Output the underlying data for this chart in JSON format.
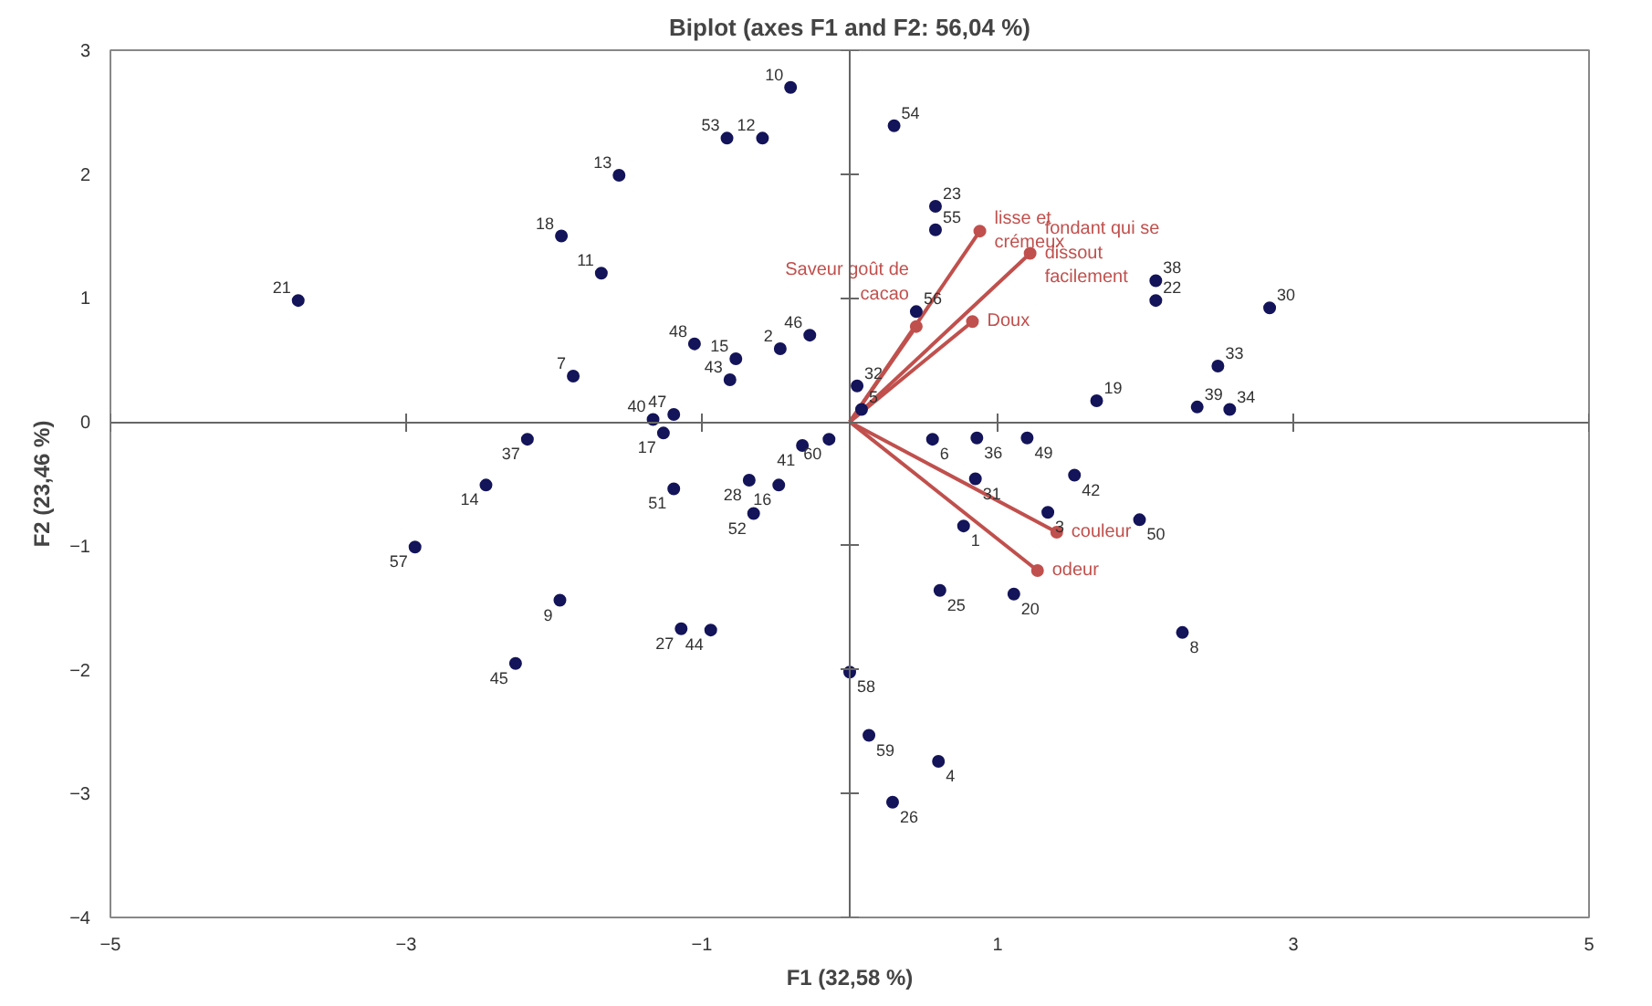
{
  "chart_data": {
    "type": "scatter",
    "title": "Biplot (axes F1 and F2: 56,04 %)",
    "xlabel": "F1 (32,58 %)",
    "ylabel": "F2 (23,46 %)",
    "xlim": [
      -5,
      5
    ],
    "ylim": [
      -4,
      3
    ],
    "xticks": [
      -5,
      -3,
      -1,
      1,
      3,
      5
    ],
    "yticks": [
      -4,
      -3,
      -2,
      -1,
      0,
      1,
      2,
      3
    ],
    "marker": "circle",
    "series": [
      {
        "color": "#14145a",
        "x": [
          -0.4,
          -0.83,
          -0.59,
          -1.56,
          -1.95,
          -1.68,
          -3.73,
          -1.05,
          -0.77,
          -0.81,
          -0.47,
          -0.27,
          -1.87,
          -1.33,
          -1.19,
          -1.26,
          -2.18,
          -2.46,
          -2.94,
          -1.96,
          -2.26,
          -1.14,
          -0.94,
          -1.19,
          -0.68,
          -0.48,
          -0.65,
          -0.32,
          -0.14,
          0.56,
          0.86,
          1.2,
          0.85,
          1.52,
          1.34,
          1.96,
          0.77,
          0.61,
          1.11,
          2.25,
          0.0,
          0.13,
          0.6,
          0.29,
          0.3,
          0.58,
          0.58,
          0.45,
          0.05,
          0.08,
          1.67,
          2.07,
          2.07,
          2.84,
          2.49,
          2.35,
          2.57
        ],
        "values": [
          2.7,
          2.29,
          2.29,
          1.99,
          1.5,
          1.2,
          0.98,
          0.63,
          0.51,
          0.34,
          0.59,
          0.7,
          0.37,
          0.02,
          0.06,
          -0.09,
          -0.14,
          -0.51,
          -1.01,
          -1.44,
          -1.95,
          -1.67,
          -1.68,
          -0.54,
          -0.47,
          -0.51,
          -0.74,
          -0.19,
          -0.14,
          -0.14,
          -0.13,
          -0.13,
          -0.46,
          -0.43,
          -0.73,
          -0.79,
          -0.84,
          -1.36,
          -1.39,
          -1.7,
          -2.02,
          -2.53,
          -2.74,
          -3.07,
          2.39,
          1.74,
          1.55,
          0.89,
          0.29,
          0.1,
          0.17,
          1.14,
          0.98,
          0.92,
          0.45,
          0.12,
          0.1
        ]
      },
      {
        "type": "line",
        "name": "lisse et crémeux",
        "color": "#c0504d",
        "x": [
          0,
          0.88
        ],
        "values": [
          0,
          1.54
        ]
      },
      {
        "type": "line",
        "name": "fondant qui se dissout facilement",
        "color": "#c0504d",
        "x": [
          0,
          1.22
        ],
        "values": [
          0,
          1.36
        ]
      },
      {
        "type": "line",
        "name": "Saveur goût de cacao",
        "color": "#c0504d",
        "x": [
          0,
          0.45
        ],
        "values": [
          0,
          0.77
        ]
      },
      {
        "type": "line",
        "name": "Doux",
        "color": "#c0504d",
        "x": [
          0,
          0.83
        ],
        "values": [
          0,
          0.81
        ]
      },
      {
        "type": "line",
        "name": "couleur",
        "color": "#c0504d",
        "x": [
          0,
          1.4
        ],
        "values": [
          0,
          -0.89
        ]
      },
      {
        "type": "line",
        "name": "odeur",
        "color": "#c0504d",
        "x": [
          0,
          1.27
        ],
        "values": [
          0,
          -1.2
        ]
      }
    ],
    "annotations": [
      {
        "text": "10",
        "x": -0.4,
        "y": 2.7
      },
      {
        "text": "53",
        "x": -0.83,
        "y": 2.29
      },
      {
        "text": "12",
        "x": -0.59,
        "y": 2.29
      },
      {
        "text": "13",
        "x": -1.56,
        "y": 1.99
      },
      {
        "text": "18",
        "x": -1.95,
        "y": 1.5
      },
      {
        "text": "11",
        "x": -1.68,
        "y": 1.2
      },
      {
        "text": "21",
        "x": -3.73,
        "y": 0.98
      },
      {
        "text": "48",
        "x": -1.05,
        "y": 0.63
      },
      {
        "text": "15",
        "x": -0.77,
        "y": 0.51
      },
      {
        "text": "43",
        "x": -0.81,
        "y": 0.34
      },
      {
        "text": "2",
        "x": -0.47,
        "y": 0.59
      },
      {
        "text": "46",
        "x": -0.27,
        "y": 0.7
      },
      {
        "text": "7",
        "x": -1.87,
        "y": 0.37
      },
      {
        "text": "40",
        "x": -1.33,
        "y": 0.02
      },
      {
        "text": "47",
        "x": -1.19,
        "y": 0.06
      },
      {
        "text": "17",
        "x": -1.26,
        "y": -0.09
      },
      {
        "text": "37",
        "x": -2.18,
        "y": -0.14
      },
      {
        "text": "14",
        "x": -2.46,
        "y": -0.51
      },
      {
        "text": "57",
        "x": -2.94,
        "y": -1.01
      },
      {
        "text": "9",
        "x": -1.96,
        "y": -1.44
      },
      {
        "text": "45",
        "x": -2.26,
        "y": -1.95
      },
      {
        "text": "27",
        "x": -1.14,
        "y": -1.67
      },
      {
        "text": "44",
        "x": -0.94,
        "y": -1.68
      },
      {
        "text": "51",
        "x": -1.19,
        "y": -0.54
      },
      {
        "text": "28",
        "x": -0.68,
        "y": -0.47
      },
      {
        "text": "16",
        "x": -0.48,
        "y": -0.51
      },
      {
        "text": "52",
        "x": -0.65,
        "y": -0.74
      },
      {
        "text": "41",
        "x": -0.32,
        "y": -0.19
      },
      {
        "text": "60",
        "x": -0.14,
        "y": -0.14
      },
      {
        "text": "6",
        "x": 0.56,
        "y": -0.14
      },
      {
        "text": "36",
        "x": 0.86,
        "y": -0.13
      },
      {
        "text": "49",
        "x": 1.2,
        "y": -0.13
      },
      {
        "text": "31",
        "x": 0.85,
        "y": -0.46
      },
      {
        "text": "42",
        "x": 1.52,
        "y": -0.43
      },
      {
        "text": "3",
        "x": 1.34,
        "y": -0.73
      },
      {
        "text": "50",
        "x": 1.96,
        "y": -0.79
      },
      {
        "text": "1",
        "x": 0.77,
        "y": -0.84
      },
      {
        "text": "25",
        "x": 0.61,
        "y": -1.36
      },
      {
        "text": "20",
        "x": 1.11,
        "y": -1.39
      },
      {
        "text": "8",
        "x": 2.25,
        "y": -1.7
      },
      {
        "text": "58",
        "x": 0.0,
        "y": -2.02
      },
      {
        "text": "59",
        "x": 0.13,
        "y": -2.53
      },
      {
        "text": "4",
        "x": 0.6,
        "y": -2.74
      },
      {
        "text": "26",
        "x": 0.29,
        "y": -3.07
      },
      {
        "text": "54",
        "x": 0.3,
        "y": 2.39
      },
      {
        "text": "23",
        "x": 0.58,
        "y": 1.74
      },
      {
        "text": "55",
        "x": 0.58,
        "y": 1.55
      },
      {
        "text": "56",
        "x": 0.45,
        "y": 0.89
      },
      {
        "text": "32",
        "x": 0.05,
        "y": 0.29
      },
      {
        "text": "5",
        "x": 0.08,
        "y": 0.1
      },
      {
        "text": "19",
        "x": 1.67,
        "y": 0.17
      },
      {
        "text": "38",
        "x": 2.07,
        "y": 1.14
      },
      {
        "text": "22",
        "x": 2.07,
        "y": 0.98
      },
      {
        "text": "30",
        "x": 2.84,
        "y": 0.92
      },
      {
        "text": "33",
        "x": 2.49,
        "y": 0.45
      },
      {
        "text": "39",
        "x": 2.35,
        "y": 0.12
      },
      {
        "text": "34",
        "x": 2.57,
        "y": 0.1
      }
    ]
  }
}
